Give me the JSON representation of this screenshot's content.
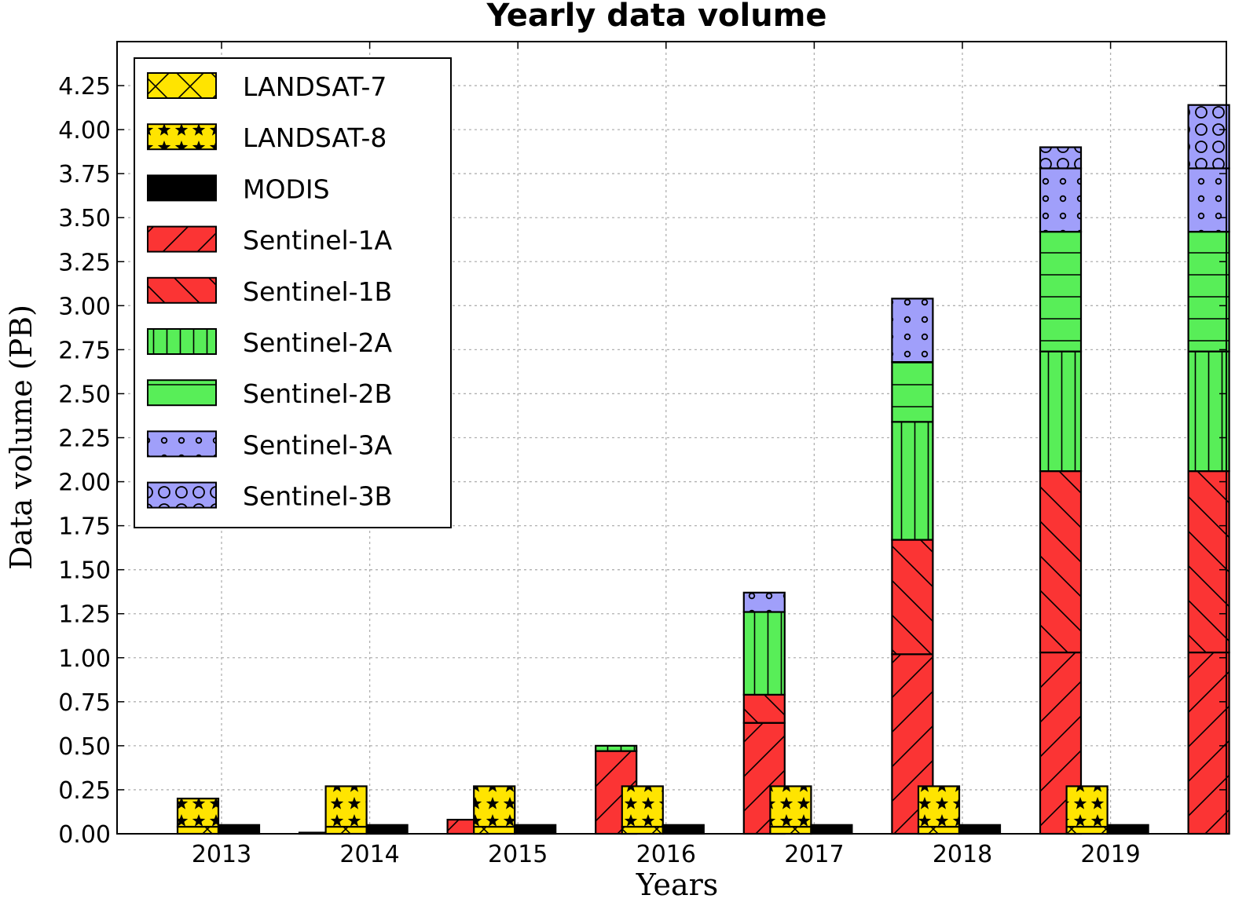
{
  "chart_data": {
    "type": "bar",
    "stacked": true,
    "title": "Yearly data volume",
    "xlabel": "Years",
    "ylabel": "Data volume (PB)",
    "ylim": [
      0,
      4.5
    ],
    "yticks": [
      "0.00",
      "0.25",
      "0.50",
      "0.75",
      "1.00",
      "1.25",
      "1.50",
      "1.75",
      "2.00",
      "2.25",
      "2.50",
      "2.75",
      "3.00",
      "3.25",
      "3.50",
      "3.75",
      "4.00",
      "4.25"
    ],
    "categories": [
      "2013",
      "2014",
      "2015",
      "2016",
      "2017",
      "2018",
      "2019"
    ],
    "grid": true,
    "legend_position": "top-left",
    "bar_groups": [
      {
        "name": "Landsat",
        "series": [
          "LANDSAT-7",
          "LANDSAT-8"
        ]
      },
      {
        "name": "MODIS",
        "series": [
          "MODIS"
        ]
      },
      {
        "name": "Sentinel",
        "series": [
          "Sentinel-1A",
          "Sentinel-1B",
          "Sentinel-2A",
          "Sentinel-2B",
          "Sentinel-3A",
          "Sentinel-3B"
        ]
      }
    ],
    "series": [
      {
        "name": "LANDSAT-7",
        "group": "Landsat",
        "color": "#ffe400",
        "pattern": "crosshatch",
        "values": [
          0.04,
          0.04,
          0.04,
          0.04,
          0.04,
          0.04,
          0.04
        ]
      },
      {
        "name": "LANDSAT-8",
        "group": "Landsat",
        "color": "#ffe400",
        "pattern": "stars",
        "values": [
          0.16,
          0.23,
          0.23,
          0.23,
          0.23,
          0.23,
          0.23
        ]
      },
      {
        "name": "MODIS",
        "group": "MODIS",
        "color": "#000000",
        "pattern": "solid",
        "values": [
          0.05,
          0.05,
          0.05,
          0.05,
          0.05,
          0.05,
          0.05
        ]
      },
      {
        "name": "Sentinel-1A",
        "group": "Sentinel",
        "color": "#fb3434",
        "pattern": "forward-slash",
        "values": [
          0.005,
          0.08,
          0.47,
          0.63,
          1.02,
          1.03,
          1.03
        ]
      },
      {
        "name": "Sentinel-1B",
        "group": "Sentinel",
        "color": "#fb3434",
        "pattern": "back-slash",
        "values": [
          0,
          0,
          0,
          0.16,
          0.65,
          1.03,
          1.03
        ]
      },
      {
        "name": "Sentinel-2A",
        "group": "Sentinel",
        "color": "#58ee58",
        "pattern": "vertical",
        "values": [
          0,
          0,
          0.03,
          0.47,
          0.67,
          0.68,
          0.68
        ]
      },
      {
        "name": "Sentinel-2B",
        "group": "Sentinel",
        "color": "#58ee58",
        "pattern": "horizontal",
        "values": [
          0,
          0,
          0,
          0,
          0.34,
          0.68,
          0.68
        ]
      },
      {
        "name": "Sentinel-3A",
        "group": "Sentinel",
        "color": "#a09ffa",
        "pattern": "small-dots",
        "values": [
          0,
          0,
          0,
          0.11,
          0.36,
          0.36,
          0.36
        ]
      },
      {
        "name": "Sentinel-3B",
        "group": "Sentinel",
        "color": "#a09ffa",
        "pattern": "circles",
        "values": [
          0,
          0,
          0,
          0,
          0,
          0.12,
          0.36
        ]
      }
    ]
  }
}
